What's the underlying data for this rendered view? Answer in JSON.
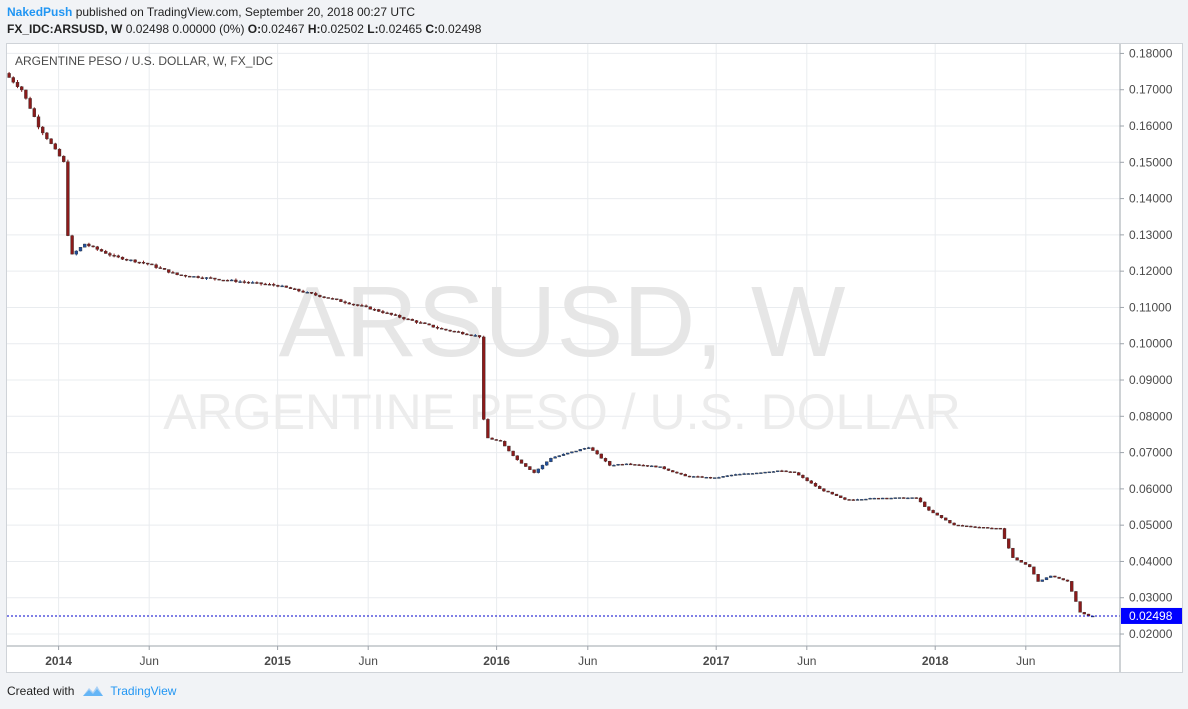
{
  "header": {
    "publisher": "NakedPush",
    "published_text": "published on TradingView.com, September 20, 2018 00:27 UTC",
    "symbol_line": "FX_IDC:ARSUSD, W",
    "quote_text": "0.02498 0.00000 (0%)",
    "o_label": "O:",
    "o_value": "0.02467",
    "h_label": "H:",
    "h_value": "0.02502",
    "l_label": "L:",
    "l_value": "0.02465",
    "c_label": "C:",
    "c_value": "0.02498"
  },
  "footer": {
    "created_with": "Created with",
    "brand": "TradingView"
  },
  "colors": {
    "up": "#1f4e9c",
    "down": "#8b1a1a",
    "grid": "#e9ecef",
    "price_line": "#0000cc",
    "price_tag": "#0000ff"
  },
  "chart_data": {
    "type": "candlestick",
    "title": "ARGENTINE PESO / U.S. DOLLAR, W, FX_IDC",
    "watermark_symbol": "ARSUSD, W",
    "watermark_name": "ARGENTINE PESO / U.S. DOLLAR",
    "y_ticks": [
      "0.18000",
      "0.17000",
      "0.16000",
      "0.15000",
      "0.14000",
      "0.13000",
      "0.12000",
      "0.11000",
      "0.10000",
      "0.09000",
      "0.08000",
      "0.07000",
      "0.06000",
      "0.05000",
      "0.04000",
      "0.03000",
      "0.02000"
    ],
    "ylim": [
      0.0167,
      0.1826
    ],
    "x_range": [
      "2013-10-07",
      "2018-11-05"
    ],
    "x_ticks": [
      {
        "date": "2014-01-01",
        "label": "2014",
        "bold": true
      },
      {
        "date": "2014-06-01",
        "label": "Jun",
        "bold": false
      },
      {
        "date": "2015-01-01",
        "label": "2015",
        "bold": true
      },
      {
        "date": "2015-06-01",
        "label": "Jun",
        "bold": false
      },
      {
        "date": "2016-01-01",
        "label": "2016",
        "bold": true
      },
      {
        "date": "2016-06-01",
        "label": "Jun",
        "bold": false
      },
      {
        "date": "2017-01-01",
        "label": "2017",
        "bold": true
      },
      {
        "date": "2017-06-01",
        "label": "Jun",
        "bold": false
      },
      {
        "date": "2018-01-01",
        "label": "2018",
        "bold": true
      },
      {
        "date": "2018-06-01",
        "label": "Jun",
        "bold": false
      }
    ],
    "last_price": "0.02498",
    "grid": true,
    "price_anchors": [
      [
        "2013-10-07",
        0.1745
      ],
      [
        "2013-11-04",
        0.17
      ],
      [
        "2013-12-02",
        0.16
      ],
      [
        "2014-01-13",
        0.15
      ],
      [
        "2014-01-20",
        0.13
      ],
      [
        "2014-01-27",
        0.1245
      ],
      [
        "2014-02-17",
        0.1275
      ],
      [
        "2014-04-07",
        0.124
      ],
      [
        "2014-06-02",
        0.122
      ],
      [
        "2014-07-21",
        0.119
      ],
      [
        "2015-01-05",
        0.116
      ],
      [
        "2015-06-01",
        0.11
      ],
      [
        "2015-10-05",
        0.104
      ],
      [
        "2015-12-07",
        0.102
      ],
      [
        "2015-12-14",
        0.079
      ],
      [
        "2015-12-21",
        0.074
      ],
      [
        "2016-01-11",
        0.073
      ],
      [
        "2016-02-08",
        0.068
      ],
      [
        "2016-03-07",
        0.0645
      ],
      [
        "2016-04-04",
        0.0685
      ],
      [
        "2016-06-06",
        0.0715
      ],
      [
        "2016-07-11",
        0.0665
      ],
      [
        "2016-08-08",
        0.067
      ],
      [
        "2016-10-03",
        0.066
      ],
      [
        "2016-11-14",
        0.0635
      ],
      [
        "2017-01-02",
        0.063
      ],
      [
        "2017-01-30",
        0.0638
      ],
      [
        "2017-04-17",
        0.065
      ],
      [
        "2017-05-15",
        0.0645
      ],
      [
        "2017-06-26",
        0.06
      ],
      [
        "2017-08-07",
        0.057
      ],
      [
        "2017-10-09",
        0.0575
      ],
      [
        "2017-12-04",
        0.0575
      ],
      [
        "2017-12-25",
        0.054
      ],
      [
        "2018-02-05",
        0.05
      ],
      [
        "2018-04-23",
        0.049
      ],
      [
        "2018-05-14",
        0.041
      ],
      [
        "2018-06-11",
        0.0385
      ],
      [
        "2018-06-25",
        0.0345
      ],
      [
        "2018-07-16",
        0.036
      ],
      [
        "2018-08-13",
        0.0345
      ],
      [
        "2018-08-27",
        0.029
      ],
      [
        "2018-09-03",
        0.026
      ],
      [
        "2018-09-17",
        0.025
      ]
    ]
  }
}
